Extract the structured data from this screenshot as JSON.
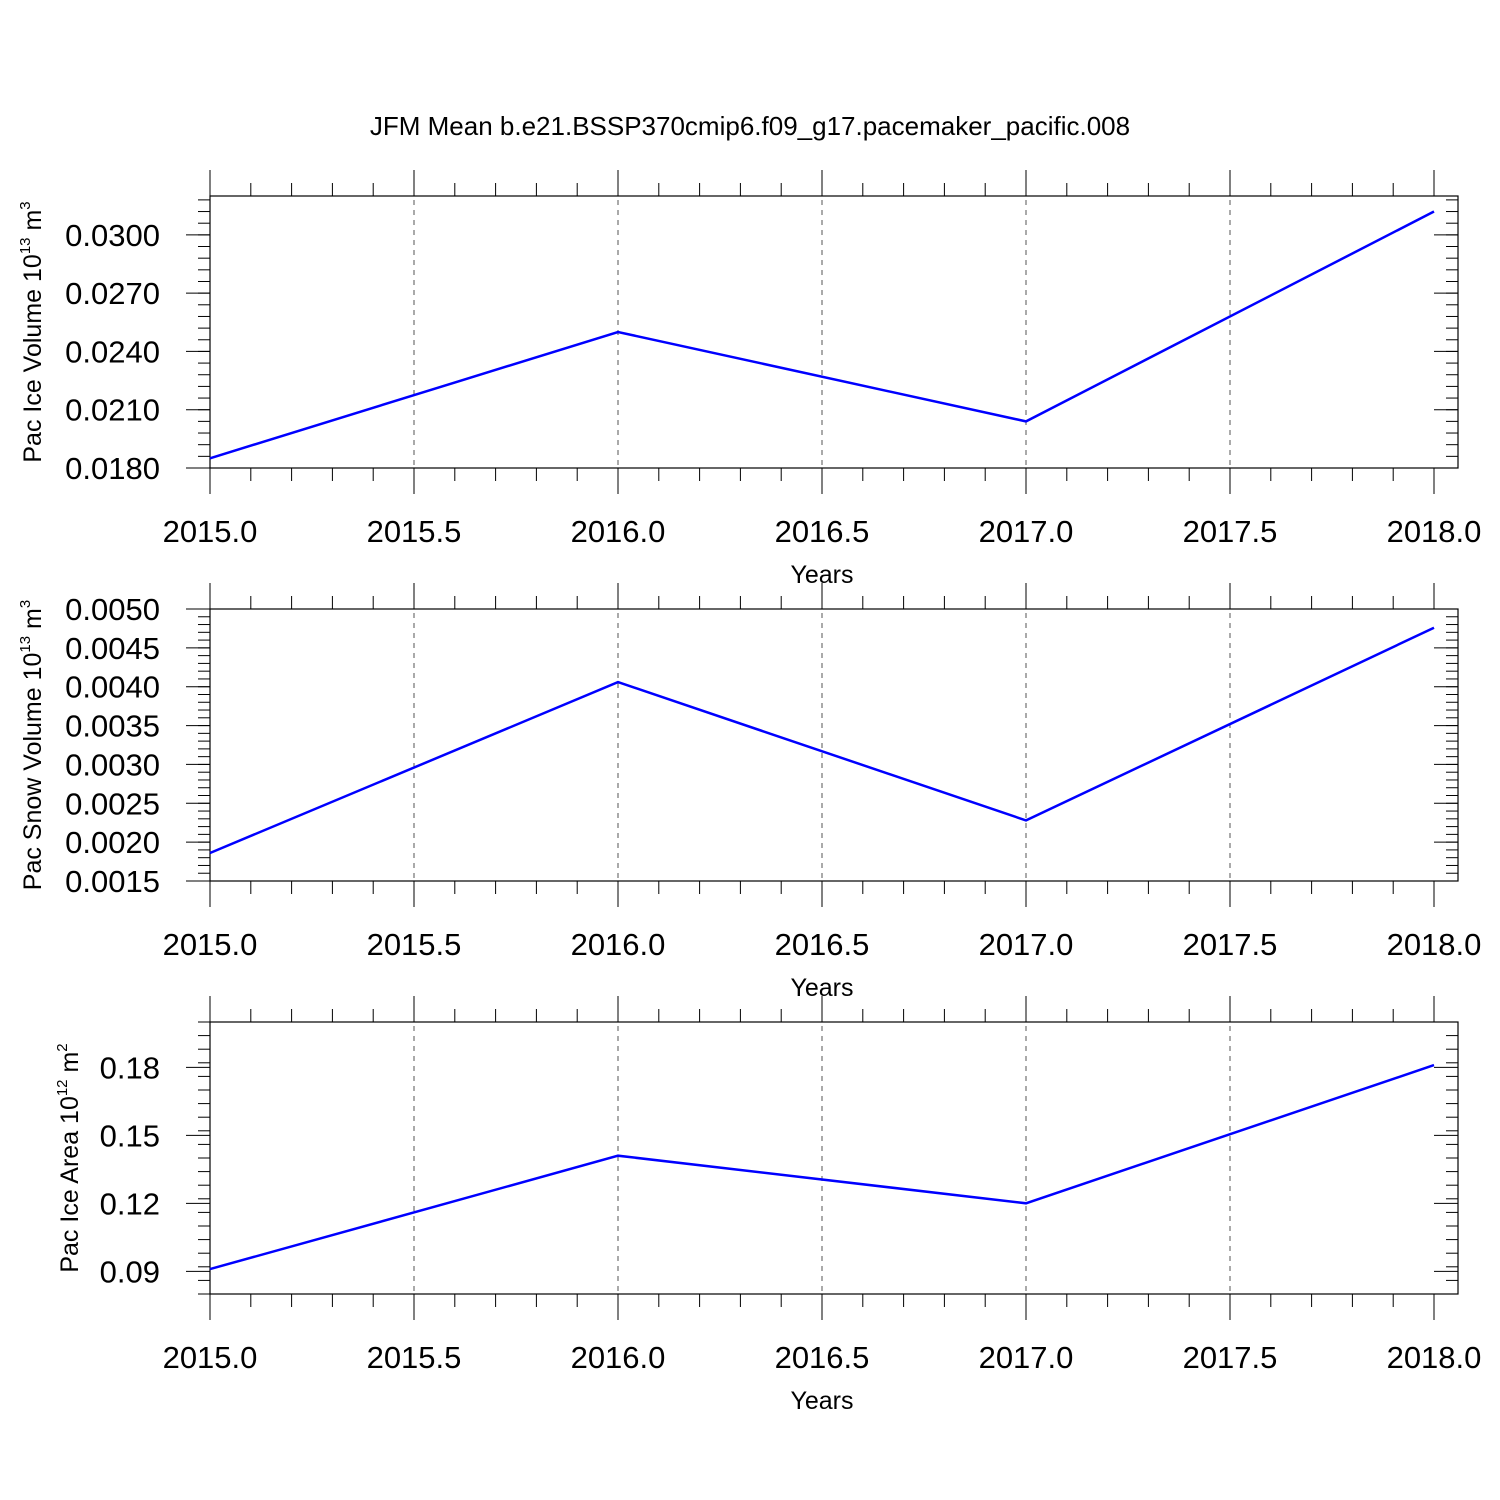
{
  "figure": {
    "title": "JFM Mean b.e21.BSSP370cmip6.f09_g17.pacemaker_pacific.008"
  },
  "chart_data": [
    {
      "type": "line",
      "xlabel": "Years",
      "ylabel": {
        "text": "Pac Ice Volume 10",
        "exp": "13",
        "unit": " m",
        "unit_exp": "3"
      },
      "x": [
        2015,
        2016,
        2017,
        2018
      ],
      "series": [
        {
          "color": "#0000ff",
          "values": [
            0.0185,
            0.025,
            0.0204,
            0.0312
          ]
        }
      ],
      "xlim": [
        2015,
        2018
      ],
      "ylim": [
        0.018,
        0.032
      ],
      "xticks": [
        2015.0,
        2015.5,
        2016.0,
        2016.5,
        2017.0,
        2017.5,
        2018.0
      ],
      "xtick_labels": [
        "2015.0",
        "2015.5",
        "2016.0",
        "2016.5",
        "2017.0",
        "2017.5",
        "2018.0"
      ],
      "yticks": [
        0.018,
        0.021,
        0.024,
        0.027,
        0.03
      ],
      "ytick_labels": [
        "0.0180",
        "0.0210",
        "0.0240",
        "0.0270",
        "0.0300"
      ],
      "y_minor_step": 0.0006,
      "grid": "vertical dashed"
    },
    {
      "type": "line",
      "xlabel": "Years",
      "ylabel": {
        "text": "Pac Snow Volume 10",
        "exp": "13",
        "unit": " m",
        "unit_exp": "3"
      },
      "x": [
        2015,
        2016,
        2017,
        2018
      ],
      "series": [
        {
          "color": "#0000ff",
          "values": [
            0.00186,
            0.00406,
            0.00228,
            0.00476
          ]
        }
      ],
      "xlim": [
        2015,
        2018
      ],
      "ylim": [
        0.0015,
        0.005
      ],
      "xticks": [
        2015.0,
        2015.5,
        2016.0,
        2016.5,
        2017.0,
        2017.5,
        2018.0
      ],
      "xtick_labels": [
        "2015.0",
        "2015.5",
        "2016.0",
        "2016.5",
        "2017.0",
        "2017.5",
        "2018.0"
      ],
      "yticks": [
        0.0015,
        0.002,
        0.0025,
        0.003,
        0.0035,
        0.004,
        0.0045,
        0.005
      ],
      "ytick_labels": [
        "0.0015",
        "0.0020",
        "0.0025",
        "0.0030",
        "0.0035",
        "0.0040",
        "0.0045",
        "0.0050"
      ],
      "y_minor_step": 0.0001,
      "grid": "vertical dashed"
    },
    {
      "type": "line",
      "xlabel": "Years",
      "ylabel": {
        "text": "Pac Ice Area 10",
        "exp": "12",
        "unit": " m",
        "unit_exp": "2"
      },
      "x": [
        2015,
        2016,
        2017,
        2018
      ],
      "series": [
        {
          "color": "#0000ff",
          "values": [
            0.091,
            0.141,
            0.12,
            0.181
          ]
        }
      ],
      "xlim": [
        2015,
        2018
      ],
      "ylim": [
        0.08,
        0.2
      ],
      "xticks": [
        2015.0,
        2015.5,
        2016.0,
        2016.5,
        2017.0,
        2017.5,
        2018.0
      ],
      "xtick_labels": [
        "2015.0",
        "2015.5",
        "2016.0",
        "2016.5",
        "2017.0",
        "2017.5",
        "2018.0"
      ],
      "yticks": [
        0.09,
        0.12,
        0.15,
        0.18
      ],
      "ytick_labels": [
        "0.09",
        "0.12",
        "0.15",
        "0.18"
      ],
      "y_minor_step": 0.006,
      "grid": "vertical dashed"
    }
  ]
}
